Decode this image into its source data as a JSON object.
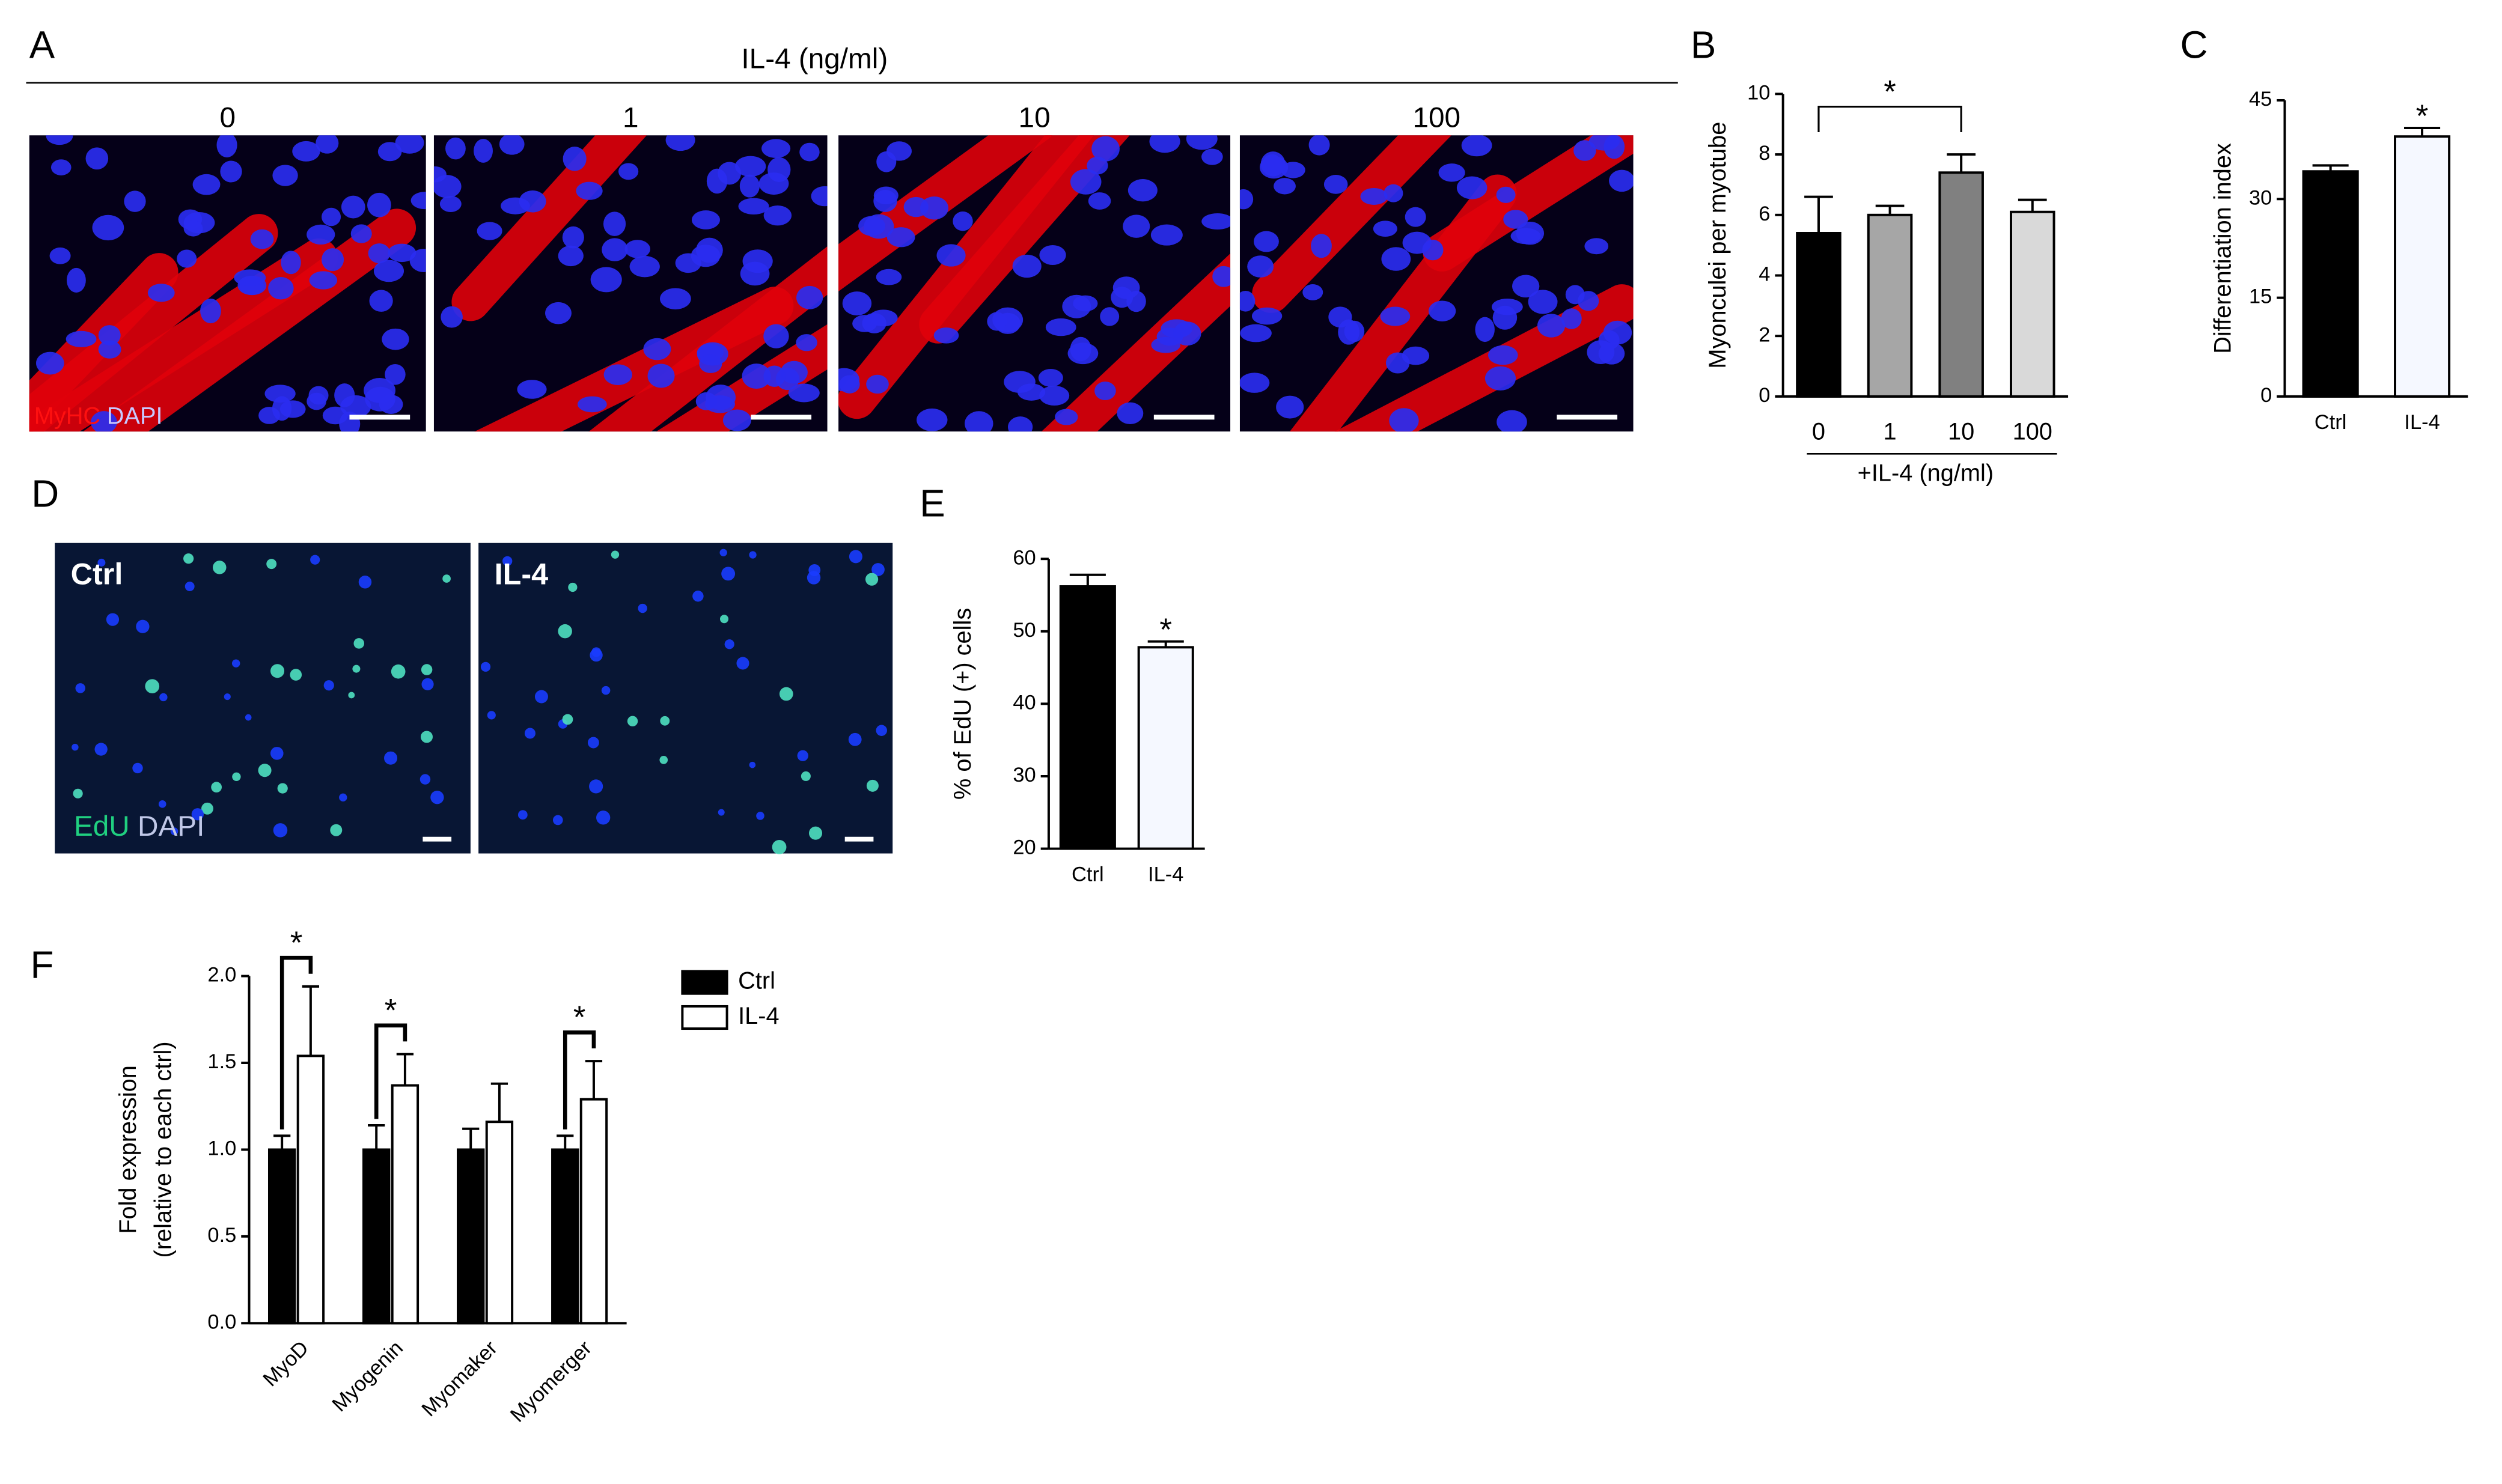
{
  "panel_labels": [
    "A",
    "B",
    "C",
    "D",
    "E",
    "F"
  ],
  "figure_a": {
    "title": "IL-4 (ng/ml)",
    "columns": [
      "0",
      "1",
      "10",
      "100"
    ],
    "stain": [
      "MyHC",
      "DAPI"
    ]
  },
  "figure_d": {
    "columns": [
      "Ctrl",
      "IL-4"
    ],
    "stain": [
      "EdU",
      "DAPI"
    ]
  },
  "chart_data": [
    {
      "type": "bar",
      "categories": [
        "0",
        "1",
        "10",
        "100"
      ],
      "values": [
        5.4,
        6.0,
        7.4,
        6.1
      ],
      "errors": [
        1.2,
        0.3,
        0.6,
        0.4
      ],
      "colors": [
        "#000000",
        "#a6a6a6",
        "#808080",
        "#d9d9d9"
      ],
      "ylabel": "Myonculei per myotube",
      "xlabel": "+IL-4 (ng/ml)",
      "ylim": [
        0,
        10
      ],
      "yticks": [
        0,
        2,
        4,
        6,
        8,
        10
      ],
      "annotations": [
        {
          "text": "*",
          "bars": [
            0,
            2
          ]
        }
      ]
    },
    {
      "type": "bar",
      "categories": [
        "Ctrl",
        "IL-4"
      ],
      "values": [
        34.2,
        39.5
      ],
      "errors": [
        0.9,
        1.3
      ],
      "colors": [
        "#000000",
        "#f5f8ff"
      ],
      "ylabel": "Differentiation index",
      "ylim": [
        0,
        45
      ],
      "yticks": [
        0,
        15,
        30,
        45
      ],
      "annotations": [
        {
          "text": "*",
          "bars": [
            1
          ]
        }
      ]
    },
    {
      "type": "bar",
      "categories": [
        "Ctrl",
        "IL-4"
      ],
      "values": [
        56.2,
        47.8
      ],
      "errors": [
        1.6,
        0.8
      ],
      "colors": [
        "#000000",
        "#f5f8ff"
      ],
      "ylabel": "% of EdU (+) cells",
      "ylim": [
        20,
        60
      ],
      "yticks": [
        20,
        30,
        40,
        50,
        60
      ],
      "annotations": [
        {
          "text": "*",
          "bars": [
            1
          ]
        }
      ]
    },
    {
      "type": "grouped-bar",
      "categories": [
        "MyoD",
        "Myogenin",
        "Myomaker",
        "Myomerger"
      ],
      "series": [
        {
          "name": "Ctrl",
          "color": "#000000",
          "values": [
            1,
            1,
            1,
            1
          ],
          "errors": [
            0.08,
            0.14,
            0.12,
            0.08
          ]
        },
        {
          "name": "IL-4",
          "color": "#ffffff",
          "values": [
            1.54,
            1.37,
            1.16,
            1.29
          ],
          "errors": [
            0.4,
            0.18,
            0.22,
            0.22
          ]
        }
      ],
      "ylabel": [
        "Fold expression",
        "(relative to each ctrl)"
      ],
      "ylim": [
        0,
        2
      ],
      "yticks": [
        {
          "value": 0,
          "label": "0.0"
        },
        {
          "value": 0.5,
          "label": "0.5"
        },
        {
          "value": 1,
          "label": "1.0"
        },
        {
          "value": 1.5,
          "label": "1.5"
        },
        {
          "value": 2,
          "label": "2.0"
        }
      ],
      "legend": "top-right-outside",
      "annotations": [
        {
          "text": "*",
          "category": 0
        },
        {
          "text": "*",
          "category": 1
        },
        {
          "text": "*",
          "category": 3
        }
      ]
    }
  ]
}
